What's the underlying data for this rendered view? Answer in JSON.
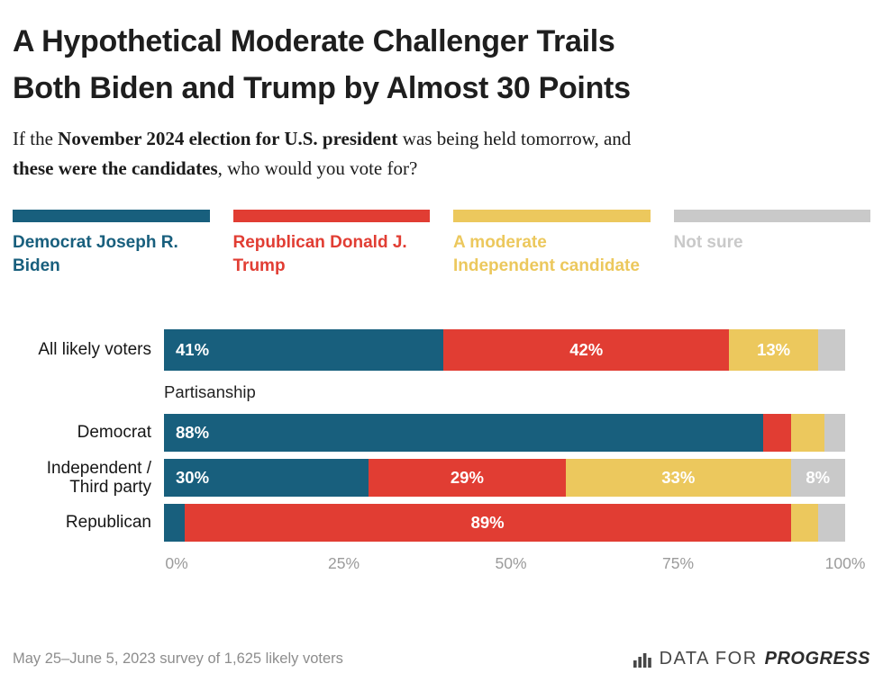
{
  "title": {
    "line1": "A Hypothetical Moderate Challenger Trails",
    "line2": "Both Biden and Trump by Almost 30 Points"
  },
  "subtitle": {
    "part1": "If the ",
    "bold1": "November 2024 election for U.S. president",
    "part2": " was being held tomorrow, and",
    "bold2": "these were the candidates",
    "part3": ", who would you vote for?"
  },
  "legend": [
    {
      "label": "Democrat Joseph R. Biden",
      "color": "#185f7d"
    },
    {
      "label": "Republican Donald J. Trump",
      "color": "#e13d33"
    },
    {
      "label": "A moderate Independent candidate",
      "color": "#ecc85d"
    },
    {
      "label": "Not sure",
      "color": "#c9c9c9"
    }
  ],
  "chart_data": {
    "type": "bar",
    "stacked": true,
    "orientation": "horizontal",
    "categories": [
      "All likely voters",
      "Democrat",
      "Independent / Third party",
      "Republican"
    ],
    "group_label": "Partisanship",
    "series": [
      {
        "name": "Democrat Joseph R. Biden",
        "color": "#185f7d",
        "values": [
          41,
          88,
          30,
          3
        ]
      },
      {
        "name": "Republican Donald J. Trump",
        "color": "#e13d33",
        "values": [
          42,
          4,
          29,
          89
        ]
      },
      {
        "name": "A moderate Independent candidate",
        "color": "#ecc85d",
        "values": [
          13,
          5,
          33,
          4
        ]
      },
      {
        "name": "Not sure",
        "color": "#c9c9c9",
        "values": [
          4,
          3,
          8,
          4
        ]
      }
    ],
    "x_ticks": [
      "0%",
      "25%",
      "50%",
      "75%",
      "100%"
    ],
    "xlim": [
      0,
      100
    ],
    "label_threshold": 8,
    "value_suffix": "%"
  },
  "footer": {
    "source": "May 25–June 5, 2023 survey of 1,625 likely voters",
    "logo_text1": "DATA FOR",
    "logo_text2": "PROGRESS"
  }
}
